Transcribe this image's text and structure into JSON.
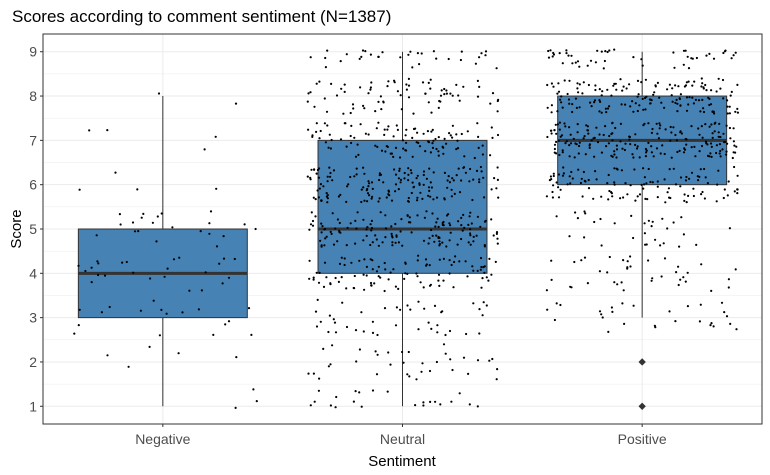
{
  "chart_data": {
    "type": "box",
    "title": "Scores according to comment sentiment (N=1387)",
    "xlabel": "Sentiment",
    "ylabel": "Score",
    "categories": [
      "Negative",
      "Neutral",
      "Positive"
    ],
    "y_ticks": [
      1,
      2,
      3,
      4,
      5,
      6,
      7,
      8,
      9
    ],
    "ylim": [
      0.6,
      9.4
    ],
    "grid": true,
    "boxes": [
      {
        "category": "Negative",
        "lower_whisker": 1,
        "q1": 3,
        "median": 4,
        "q3": 5,
        "upper_whisker": 8,
        "outliers": [],
        "jitter_count": 80
      },
      {
        "category": "Neutral",
        "lower_whisker": 1,
        "q1": 4,
        "median": 5,
        "q3": 7,
        "upper_whisker": 9,
        "outliers": [],
        "jitter_count": 700
      },
      {
        "category": "Positive",
        "lower_whisker": 3,
        "q1": 6,
        "median": 7,
        "q3": 8,
        "upper_whisker": 9,
        "outliers": [
          2,
          1
        ],
        "jitter_count": 607
      }
    ],
    "colors": {
      "box_fill": "#4682b4",
      "box_stroke": "#333333",
      "points": "#000000",
      "grid": "#ebebeb",
      "panel_border": "#333333"
    }
  }
}
